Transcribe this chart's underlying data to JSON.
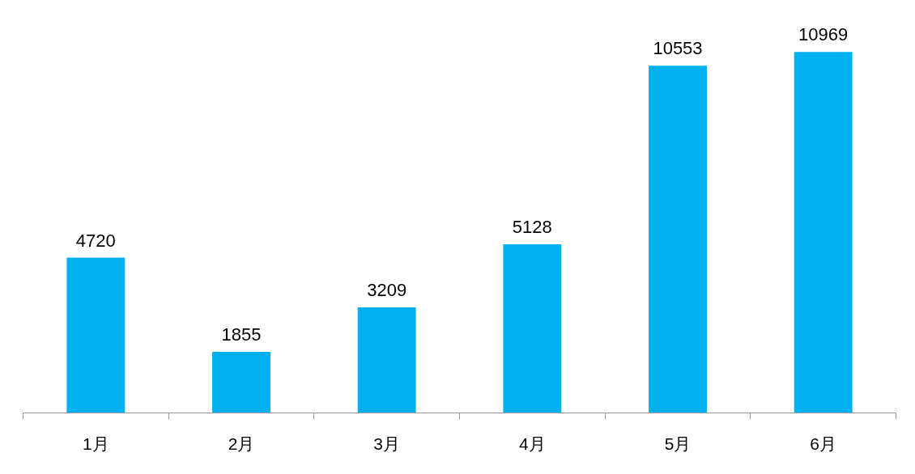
{
  "chart_data": {
    "type": "bar",
    "categories": [
      "1月",
      "2月",
      "3月",
      "4月",
      "5月",
      "6月"
    ],
    "values": [
      4720,
      1855,
      3209,
      5128,
      10553,
      10969
    ],
    "color": "#00b0f0",
    "data_labels": true,
    "grid": false
  }
}
